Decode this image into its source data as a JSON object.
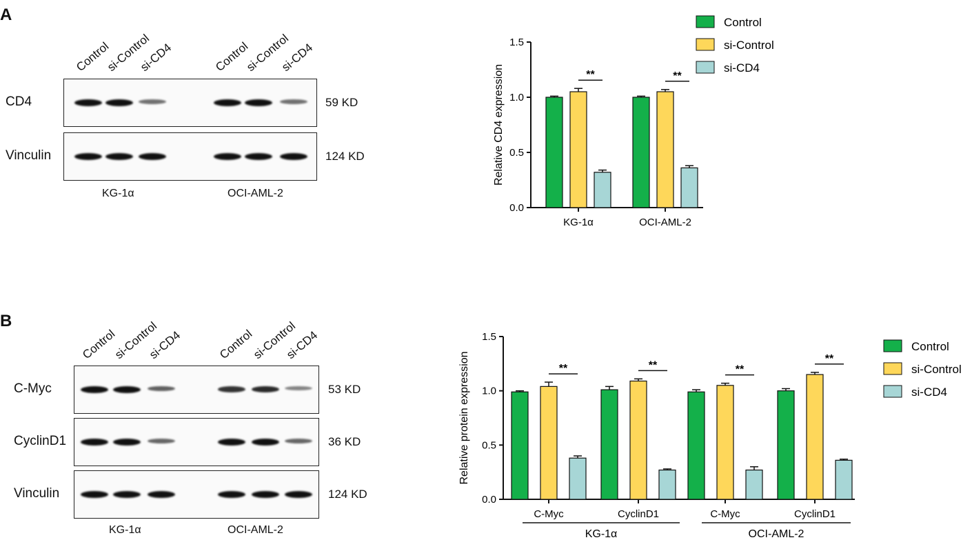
{
  "panels": {
    "A": {
      "letter": "A",
      "lanes": [
        "Control",
        "si-Control",
        "si-CD4",
        "Control",
        "si-Control",
        "si-CD4"
      ],
      "proteins": [
        {
          "name": "CD4",
          "kd": "59 KD",
          "intensity": [
            1.0,
            1.0,
            0.45,
            1.0,
            1.0,
            0.45
          ]
        },
        {
          "name": "Vinculin",
          "kd": "124 KD",
          "intensity": [
            1.0,
            1.0,
            1.0,
            1.0,
            1.0,
            1.0
          ]
        }
      ],
      "cell_lines": [
        "KG-1α",
        "OCI-AML-2"
      ]
    },
    "B": {
      "letter": "B",
      "lanes": [
        "Control",
        "si-Control",
        "si-CD4",
        "Control",
        "si-Control",
        "si-CD4"
      ],
      "proteins": [
        {
          "name": "C-Myc",
          "kd": "53 KD",
          "intensity": [
            1.0,
            1.0,
            0.55,
            0.8,
            0.85,
            0.35
          ]
        },
        {
          "name": "CyclinD1",
          "kd": "36 KD",
          "intensity": [
            1.0,
            1.0,
            0.5,
            1.0,
            1.0,
            0.5
          ]
        },
        {
          "name": "Vinculin",
          "kd": "124 KD",
          "intensity": [
            1.0,
            1.0,
            1.0,
            1.0,
            1.0,
            1.0
          ]
        }
      ],
      "cell_lines": [
        "KG-1α",
        "OCI-AML-2"
      ]
    }
  },
  "legend": [
    "Control",
    "si-Control",
    "si-CD4"
  ],
  "colors": {
    "Control": "#14b04a",
    "si-Control": "#fed75a",
    "si-CD4": "#a7d6d6"
  },
  "chart_data": [
    {
      "type": "bar",
      "ylabel": "Relative CD4  expression",
      "ylim": [
        0,
        1.5
      ],
      "yticks": [
        "0.0",
        "0.5",
        "1.0",
        "1.5"
      ],
      "categories": [
        "KG-1α",
        "OCI-AML-2"
      ],
      "series": [
        {
          "name": "Control",
          "values": [
            1.0,
            1.0
          ],
          "errors": [
            0.01,
            0.01
          ]
        },
        {
          "name": "si-Control",
          "values": [
            1.05,
            1.05
          ],
          "errors": [
            0.03,
            0.02
          ]
        },
        {
          "name": "si-CD4",
          "values": [
            0.32,
            0.36
          ],
          "errors": [
            0.02,
            0.02
          ]
        }
      ],
      "annotations": [
        "**",
        "**"
      ],
      "legend": "top-right"
    },
    {
      "type": "bar",
      "ylabel": "Relative protein expression",
      "ylim": [
        0,
        1.5
      ],
      "yticks": [
        "0.0",
        "0.5",
        "1.0",
        "1.5"
      ],
      "categories": [
        "C-Myc",
        "CyclinD1",
        "C-Myc",
        "CyclinD1"
      ],
      "groups": [
        "KG-1α",
        "OCI-AML-2"
      ],
      "series": [
        {
          "name": "Control",
          "values": [
            0.99,
            1.01,
            0.99,
            1.0
          ],
          "errors": [
            0.01,
            0.03,
            0.02,
            0.02
          ]
        },
        {
          "name": "si-Control",
          "values": [
            1.04,
            1.09,
            1.05,
            1.15
          ],
          "errors": [
            0.04,
            0.02,
            0.02,
            0.02
          ]
        },
        {
          "name": "si-CD4",
          "values": [
            0.38,
            0.27,
            0.27,
            0.36
          ],
          "errors": [
            0.02,
            0.01,
            0.03,
            0.01
          ]
        }
      ],
      "annotations": [
        "**",
        "**",
        "**",
        "**"
      ],
      "legend": "right"
    }
  ]
}
